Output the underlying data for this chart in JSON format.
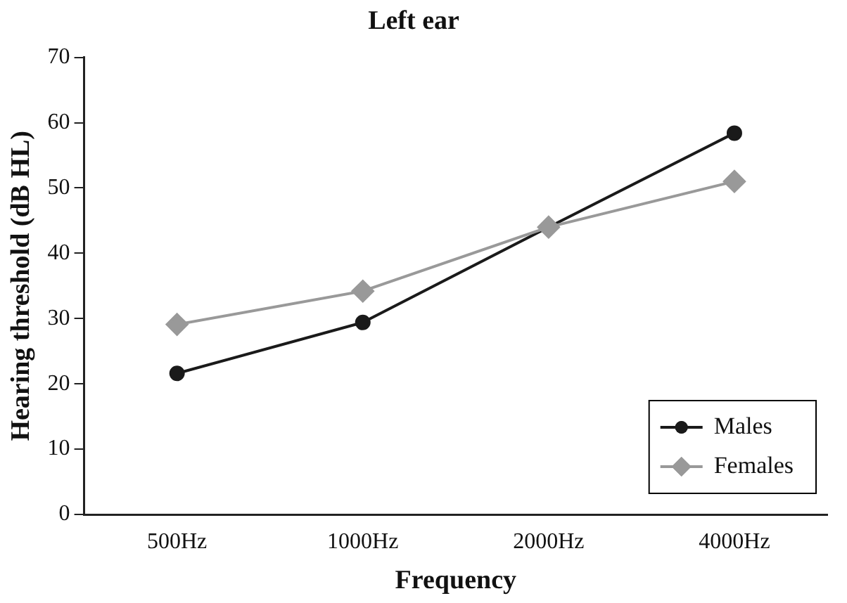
{
  "chart_data": {
    "type": "line",
    "title": "Left ear",
    "xlabel": "Frequency",
    "ylabel": "Hearing threshold (dB HL)",
    "categories": [
      "500Hz",
      "1000Hz",
      "2000Hz",
      "4000Hz"
    ],
    "series": [
      {
        "name": "Males",
        "color": "#1a1a1a",
        "marker": "circle",
        "values": [
          21.6,
          29.4,
          44,
          58.4
        ]
      },
      {
        "name": "Females",
        "color": "#999999",
        "marker": "diamond",
        "values": [
          29.1,
          34.2,
          44,
          51
        ]
      }
    ],
    "ylim": [
      0,
      70
    ],
    "yticks": [
      0,
      10,
      20,
      30,
      40,
      50,
      60,
      70
    ],
    "grid": false,
    "legend": "bottom right"
  }
}
